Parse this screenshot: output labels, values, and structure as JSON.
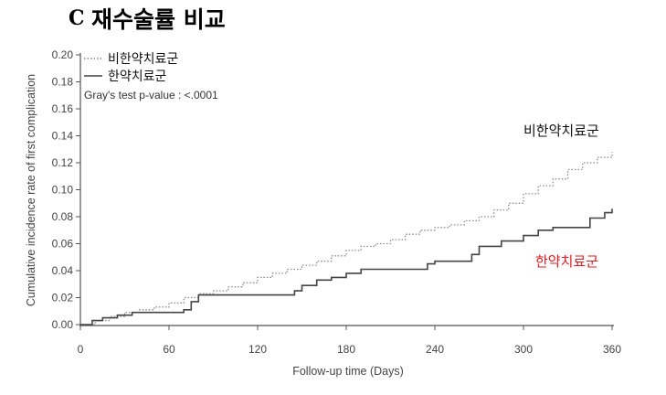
{
  "panel_letter": "C",
  "title": "재수술률 비교",
  "chart_data": {
    "type": "line",
    "step": true,
    "xlabel": "Follow-up time (Days)",
    "ylabel": "Cumulative incidence rate of first complication",
    "xlim": [
      0,
      360
    ],
    "ylim": [
      0,
      0.2
    ],
    "xticks": [
      0,
      60,
      120,
      180,
      240,
      300,
      360
    ],
    "yticks": [
      "0.00",
      "0.02",
      "0.04",
      "0.06",
      "0.08",
      "0.10",
      "0.12",
      "0.14",
      "0.16",
      "0.18",
      "0.20"
    ],
    "grid": false,
    "legend_position": "top-left",
    "annotation": "Gray's test p-value : <.0001",
    "series": [
      {
        "name": "비한약치료군",
        "style": "dotted",
        "color": "#8a8a8a",
        "label_color": "#111111",
        "x": [
          0,
          10,
          20,
          30,
          40,
          50,
          60,
          70,
          80,
          90,
          100,
          110,
          120,
          130,
          140,
          150,
          160,
          170,
          180,
          190,
          200,
          210,
          220,
          230,
          240,
          250,
          260,
          270,
          280,
          290,
          300,
          310,
          320,
          330,
          340,
          350,
          360
        ],
        "y": [
          0.0,
          0.003,
          0.006,
          0.009,
          0.011,
          0.013,
          0.016,
          0.02,
          0.023,
          0.025,
          0.028,
          0.031,
          0.035,
          0.038,
          0.041,
          0.044,
          0.047,
          0.051,
          0.055,
          0.058,
          0.06,
          0.063,
          0.067,
          0.07,
          0.072,
          0.074,
          0.077,
          0.08,
          0.085,
          0.09,
          0.097,
          0.103,
          0.108,
          0.115,
          0.12,
          0.124,
          0.128
        ]
      },
      {
        "name": "한약치료군",
        "style": "solid",
        "color": "#444444",
        "label_color": "#e31b23",
        "x": [
          0,
          8,
          15,
          25,
          35,
          70,
          75,
          80,
          140,
          145,
          150,
          160,
          170,
          180,
          190,
          200,
          235,
          240,
          265,
          270,
          285,
          300,
          310,
          320,
          345,
          355,
          360
        ],
        "y": [
          0.0,
          0.003,
          0.005,
          0.007,
          0.009,
          0.011,
          0.017,
          0.022,
          0.022,
          0.025,
          0.029,
          0.033,
          0.035,
          0.038,
          0.041,
          0.041,
          0.045,
          0.047,
          0.052,
          0.058,
          0.062,
          0.066,
          0.07,
          0.072,
          0.079,
          0.083,
          0.086
        ]
      }
    ]
  }
}
